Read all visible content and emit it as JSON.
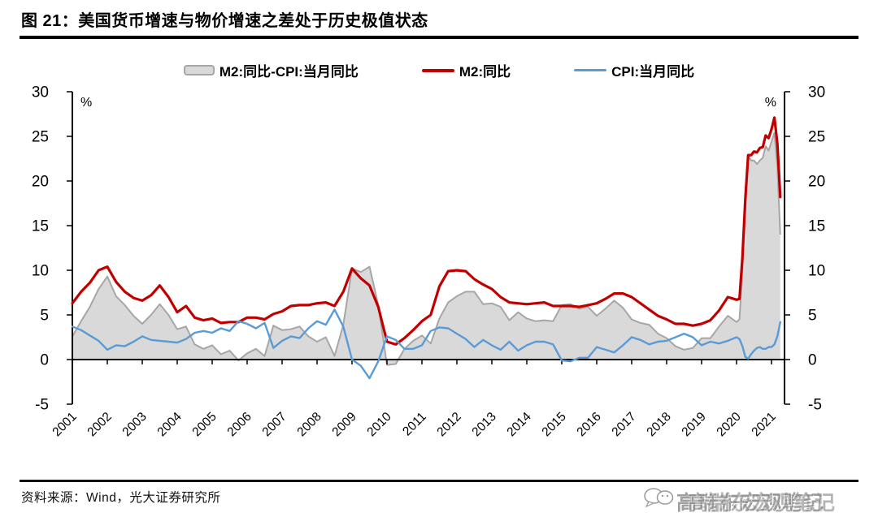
{
  "header": {
    "title": "图 21：美国货币增速与物价增速之差处于历史极值状态"
  },
  "footer": {
    "source": "资料来源：Wind，光大证券研究所"
  },
  "watermark": {
    "icon": "wechat-bubbles-icon",
    "text": "高瑞东宏观笔记"
  },
  "colors": {
    "m2_line": "#C00000",
    "cpi_line": "#5B9BD5",
    "area_fill": "#D9D9D9",
    "area_stroke": "#A6A6A6",
    "axis": "#000000"
  },
  "chart_data": {
    "type": "line",
    "title": "美国货币增速与物价增速之差处于历史极值状态",
    "unit_label": "%",
    "ylim": [
      -5,
      30
    ],
    "yticks": [
      30,
      25,
      20,
      15,
      10,
      5,
      0,
      -5
    ],
    "grid": false,
    "legend_position": "top",
    "x_tick_labels": [
      "2001",
      "2002",
      "2003",
      "2004",
      "2005",
      "2006",
      "2007",
      "2008",
      "2009",
      "2010",
      "2011",
      "2012",
      "2013",
      "2014",
      "2015",
      "2016",
      "2017",
      "2018",
      "2019",
      "2020",
      "2021"
    ],
    "x": [
      2001.0,
      2001.25,
      2001.5,
      2001.75,
      2002.0,
      2002.25,
      2002.5,
      2002.75,
      2003.0,
      2003.25,
      2003.5,
      2003.75,
      2004.0,
      2004.25,
      2004.5,
      2004.75,
      2005.0,
      2005.25,
      2005.5,
      2005.75,
      2006.0,
      2006.25,
      2006.5,
      2006.75,
      2007.0,
      2007.25,
      2007.5,
      2007.75,
      2008.0,
      2008.25,
      2008.5,
      2008.75,
      2009.0,
      2009.25,
      2009.5,
      2009.75,
      2010.0,
      2010.25,
      2010.5,
      2010.75,
      2011.0,
      2011.25,
      2011.5,
      2011.75,
      2012.0,
      2012.25,
      2012.5,
      2012.75,
      2013.0,
      2013.25,
      2013.5,
      2013.75,
      2014.0,
      2014.25,
      2014.5,
      2014.75,
      2015.0,
      2015.25,
      2015.5,
      2015.75,
      2016.0,
      2016.25,
      2016.5,
      2016.75,
      2017.0,
      2017.25,
      2017.5,
      2017.75,
      2018.0,
      2018.25,
      2018.5,
      2018.75,
      2019.0,
      2019.25,
      2019.5,
      2019.75,
      2020.0,
      2020.083,
      2020.167,
      2020.25,
      2020.333,
      2020.417,
      2020.5,
      2020.583,
      2020.667,
      2020.75,
      2020.833,
      2020.917,
      2021.0,
      2021.083,
      2021.167,
      2021.25
    ],
    "series": [
      {
        "name": "M2:同比-CPI:当月同比",
        "type": "area",
        "fill": "#D9D9D9",
        "stroke": "#A6A6A6",
        "values": [
          2.6,
          4.3,
          5.9,
          7.9,
          9.3,
          7.1,
          6.1,
          4.9,
          4.0,
          5.0,
          6.2,
          5.0,
          3.4,
          3.7,
          1.7,
          1.2,
          1.6,
          0.6,
          1.0,
          -0.1,
          0.7,
          1.2,
          0.4,
          3.8,
          3.3,
          3.4,
          3.7,
          2.6,
          2.0,
          2.5,
          0.4,
          3.9,
          10.2,
          9.8,
          10.4,
          6.1,
          -0.6,
          -0.5,
          1.2,
          2.1,
          2.7,
          1.8,
          4.6,
          6.4,
          7.1,
          7.6,
          7.6,
          6.2,
          6.3,
          5.9,
          4.4,
          5.3,
          4.6,
          4.3,
          4.4,
          4.3,
          6.1,
          6.2,
          5.7,
          5.9,
          4.9,
          5.7,
          6.6,
          5.8,
          4.5,
          4.1,
          3.9,
          2.9,
          2.4,
          1.5,
          1.1,
          1.3,
          2.4,
          2.4,
          3.7,
          4.9,
          4.2,
          4.5,
          9.9,
          17.7,
          22.8,
          22.3,
          22.3,
          21.9,
          22.3,
          22.6,
          23.9,
          23.4,
          24.4,
          25.4,
          21.6,
          14.0
        ]
      },
      {
        "name": "M2:同比",
        "type": "line",
        "color": "#C00000",
        "values": [
          6.3,
          7.6,
          8.6,
          10.0,
          10.4,
          8.7,
          7.6,
          6.9,
          6.6,
          7.2,
          8.3,
          7.0,
          5.3,
          6.0,
          4.7,
          4.4,
          4.6,
          4.1,
          4.2,
          4.2,
          4.7,
          4.7,
          4.5,
          5.1,
          5.4,
          6.0,
          6.1,
          6.1,
          6.3,
          6.4,
          6.0,
          7.6,
          10.2,
          9.1,
          8.3,
          5.9,
          2.0,
          1.7,
          2.4,
          3.3,
          4.3,
          5.0,
          8.2,
          9.9,
          10.0,
          9.9,
          9.0,
          8.4,
          7.9,
          7.0,
          6.4,
          6.3,
          6.2,
          6.3,
          6.4,
          6.0,
          6.0,
          6.0,
          5.9,
          6.1,
          6.3,
          6.8,
          7.4,
          7.4,
          7.0,
          6.3,
          5.6,
          4.9,
          4.5,
          4.0,
          4.0,
          3.8,
          4.0,
          4.4,
          5.5,
          7.0,
          6.7,
          6.8,
          11.4,
          18.0,
          22.9,
          22.9,
          23.3,
          23.2,
          23.7,
          23.8,
          25.1,
          24.8,
          25.8,
          27.1,
          24.2,
          18.2
        ]
      },
      {
        "name": "CPI:当月同比",
        "type": "line",
        "color": "#5B9BD5",
        "values": [
          3.7,
          3.3,
          2.7,
          2.1,
          1.1,
          1.6,
          1.5,
          2.0,
          2.6,
          2.2,
          2.1,
          2.0,
          1.9,
          2.3,
          3.0,
          3.2,
          3.0,
          3.5,
          3.2,
          4.3,
          4.0,
          3.5,
          4.1,
          1.3,
          2.1,
          2.6,
          2.4,
          3.5,
          4.3,
          3.9,
          5.6,
          3.7,
          0.0,
          -0.7,
          -2.1,
          -0.2,
          2.6,
          2.2,
          1.2,
          1.2,
          1.6,
          3.2,
          3.6,
          3.5,
          2.9,
          2.3,
          1.4,
          2.2,
          1.6,
          1.1,
          2.0,
          1.0,
          1.6,
          2.0,
          2.0,
          1.7,
          -0.1,
          -0.2,
          0.2,
          0.2,
          1.4,
          1.1,
          0.8,
          1.6,
          2.5,
          2.2,
          1.7,
          2.0,
          2.1,
          2.5,
          2.9,
          2.5,
          1.6,
          2.0,
          1.8,
          2.1,
          2.5,
          2.3,
          1.5,
          0.3,
          0.1,
          0.6,
          1.0,
          1.3,
          1.4,
          1.2,
          1.2,
          1.4,
          1.4,
          1.7,
          2.6,
          4.2
        ]
      }
    ]
  }
}
